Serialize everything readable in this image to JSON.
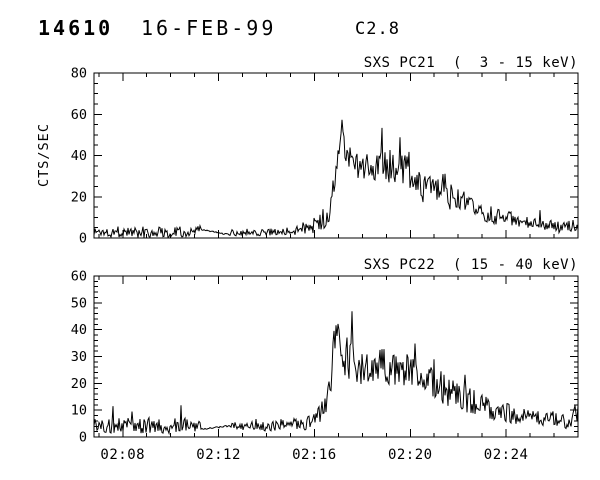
{
  "header": {
    "event_id": "14610",
    "date": "16-FEB-99",
    "goes_class": "C2.8"
  },
  "chart_data": [
    {
      "type": "line",
      "instrument": "SXS PC21",
      "energy_band": "3 - 15 keV",
      "title": "SXS PC21  (  3 - 15 keV)",
      "ylabel": "CTS/SEC",
      "ylim": [
        0,
        80
      ],
      "yticks": [
        0,
        20,
        40,
        60,
        80
      ],
      "yminor_step": 5,
      "xlim_minutes_after_0200": [
        6.8,
        27.0
      ],
      "xtick_minutes": [
        8,
        12,
        16,
        20,
        24
      ],
      "xtick_labels": [
        "02:08",
        "02:12",
        "02:16",
        "02:20",
        "02:24"
      ],
      "xminor_step_minutes": 1,
      "show_x_labels": false,
      "line_color": "#000000",
      "noise_seed": 1337,
      "envelope_t_mean_amp": [
        [
          6.8,
          3,
          2.5
        ],
        [
          8.0,
          3,
          2.8
        ],
        [
          9.0,
          3,
          3
        ],
        [
          10.0,
          3,
          2.8
        ],
        [
          10.6,
          3.5,
          3
        ],
        [
          11.2,
          4,
          2.5
        ],
        [
          11.3,
          4,
          0.3
        ],
        [
          11.8,
          3,
          0.3
        ],
        [
          12.3,
          1.8,
          0.3
        ],
        [
          12.5,
          2.5,
          1.5
        ],
        [
          13.2,
          3,
          2
        ],
        [
          13.8,
          2.8,
          1.8
        ],
        [
          14.5,
          3,
          1.5
        ],
        [
          15.0,
          3.5,
          2
        ],
        [
          15.5,
          4,
          2.5
        ],
        [
          15.9,
          5,
          3
        ],
        [
          16.2,
          6.5,
          3
        ],
        [
          16.5,
          9,
          4
        ],
        [
          16.7,
          15,
          5
        ],
        [
          16.85,
          30,
          7
        ],
        [
          17.0,
          46,
          8
        ],
        [
          17.1,
          52,
          6
        ],
        [
          17.15,
          56,
          2
        ],
        [
          17.25,
          44,
          6
        ],
        [
          17.4,
          40,
          6
        ],
        [
          17.6,
          37,
          6
        ],
        [
          17.9,
          34,
          7
        ],
        [
          18.2,
          36,
          7
        ],
        [
          18.5,
          35,
          8
        ],
        [
          18.8,
          34,
          8
        ],
        [
          19.1,
          35,
          8
        ],
        [
          19.4,
          34,
          8
        ],
        [
          19.7,
          33,
          8
        ],
        [
          20.0,
          31,
          8
        ],
        [
          20.3,
          28,
          9
        ],
        [
          20.45,
          22,
          10
        ],
        [
          20.6,
          26,
          8
        ],
        [
          21.0,
          23,
          7
        ],
        [
          21.4,
          21,
          7
        ],
        [
          21.8,
          19,
          6
        ],
        [
          22.2,
          17,
          6
        ],
        [
          22.6,
          14,
          5
        ],
        [
          23.0,
          13,
          5
        ],
        [
          23.4,
          11,
          4.5
        ],
        [
          23.8,
          10,
          4
        ],
        [
          24.2,
          9,
          4
        ],
        [
          24.6,
          8,
          3.5
        ],
        [
          25.0,
          7,
          3
        ],
        [
          25.5,
          6,
          3
        ],
        [
          26.0,
          5.5,
          3
        ],
        [
          26.4,
          5,
          3
        ],
        [
          26.8,
          6,
          3.5
        ],
        [
          27.0,
          8,
          4
        ]
      ]
    },
    {
      "type": "line",
      "instrument": "SXS PC22",
      "energy_band": "15 - 40 keV",
      "title": "SXS PC22  ( 15 - 40 keV)",
      "ylabel": "",
      "ylim": [
        0,
        60
      ],
      "yticks": [
        0,
        10,
        20,
        30,
        40,
        50,
        60
      ],
      "yminor_step": 2,
      "xlim_minutes_after_0200": [
        6.8,
        27.0
      ],
      "xtick_minutes": [
        8,
        12,
        16,
        20,
        24
      ],
      "xtick_labels": [
        "02:08",
        "02:12",
        "02:16",
        "02:20",
        "02:24"
      ],
      "xminor_step_minutes": 1,
      "show_x_labels": true,
      "line_color": "#000000",
      "noise_seed": 4242,
      "envelope_t_mean_amp": [
        [
          6.8,
          4,
          3
        ],
        [
          8.0,
          4,
          3
        ],
        [
          9.0,
          4.5,
          3
        ],
        [
          10.0,
          4,
          3
        ],
        [
          10.6,
          4.5,
          3
        ],
        [
          11.2,
          4.5,
          2.5
        ],
        [
          11.3,
          3,
          0.3
        ],
        [
          11.8,
          3.5,
          0.3
        ],
        [
          12.3,
          4,
          0.3
        ],
        [
          12.5,
          4,
          1.5
        ],
        [
          13.2,
          4.5,
          2
        ],
        [
          13.8,
          4,
          2
        ],
        [
          14.5,
          4.5,
          2
        ],
        [
          15.0,
          5,
          2
        ],
        [
          15.5,
          5,
          2.5
        ],
        [
          15.9,
          6,
          3
        ],
        [
          16.2,
          8,
          3.5
        ],
        [
          16.5,
          12,
          5
        ],
        [
          16.7,
          22,
          7
        ],
        [
          16.85,
          38,
          7
        ],
        [
          16.95,
          42,
          4
        ],
        [
          17.05,
          36,
          8
        ],
        [
          17.2,
          32,
          8
        ],
        [
          17.4,
          29,
          8
        ],
        [
          17.7,
          27,
          7
        ],
        [
          18.0,
          26,
          7
        ],
        [
          18.3,
          27,
          7
        ],
        [
          18.6,
          26,
          8
        ],
        [
          18.9,
          27,
          7
        ],
        [
          19.2,
          26,
          7
        ],
        [
          19.5,
          25,
          7
        ],
        [
          19.8,
          25,
          7
        ],
        [
          20.1,
          24,
          7
        ],
        [
          20.4,
          23,
          7
        ],
        [
          20.7,
          21,
          6
        ],
        [
          21.0,
          20,
          6
        ],
        [
          21.4,
          18,
          6
        ],
        [
          21.8,
          16,
          5
        ],
        [
          22.2,
          15,
          5
        ],
        [
          22.6,
          13,
          5
        ],
        [
          23.0,
          12,
          4
        ],
        [
          23.4,
          10,
          4
        ],
        [
          23.8,
          9.5,
          4
        ],
        [
          24.2,
          8.5,
          3.5
        ],
        [
          24.6,
          8,
          3.5
        ],
        [
          25.0,
          7.5,
          3
        ],
        [
          25.5,
          7,
          3
        ],
        [
          26.0,
          6.5,
          3
        ],
        [
          26.4,
          6,
          3
        ],
        [
          26.8,
          7,
          3.5
        ],
        [
          27.0,
          10,
          4
        ]
      ]
    }
  ]
}
